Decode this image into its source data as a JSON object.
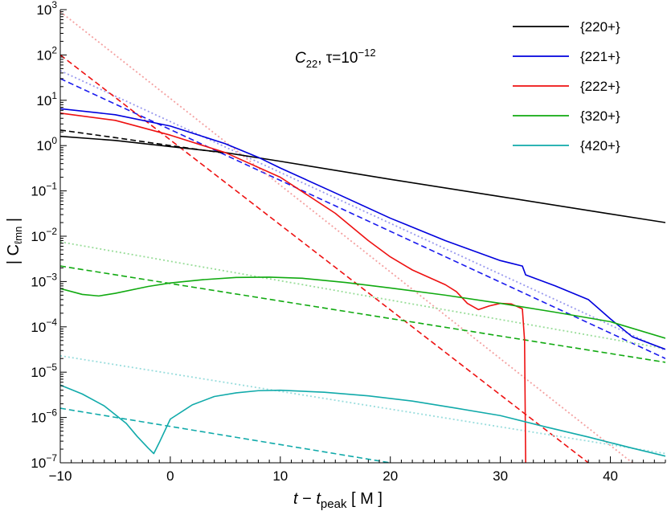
{
  "chart_data": {
    "type": "line",
    "title": "",
    "annotation": {
      "main": "C",
      "sub": "22",
      "tau": ", τ=10",
      "tau_exp": "−12"
    },
    "xlabel": {
      "t": "t",
      "minus": " − ",
      "tpeak": "t",
      "tpeak_sub": "peak",
      "unit": " [ M ]"
    },
    "ylabel": {
      "text": "| C",
      "sub": "ℓmn",
      "close": " |"
    },
    "xlim": [
      -10,
      45
    ],
    "ylim": [
      1e-07,
      1000
    ],
    "yscale": "log",
    "grid": false,
    "legend_position": "top-right",
    "x_ticks": [
      {
        "value": -10,
        "label": "−10"
      },
      {
        "value": 0,
        "label": "0"
      },
      {
        "value": 10,
        "label": "10"
      },
      {
        "value": 20,
        "label": "20"
      },
      {
        "value": 30,
        "label": "30"
      },
      {
        "value": 40,
        "label": "40"
      }
    ],
    "y_ticks": [
      {
        "exp": 3,
        "base": "10",
        "sup": "3"
      },
      {
        "exp": 2,
        "base": "10",
        "sup": "2"
      },
      {
        "exp": 1,
        "base": "10",
        "sup": "1"
      },
      {
        "exp": 0,
        "base": "10",
        "sup": "0"
      },
      {
        "exp": -1,
        "base": "10",
        "sup": "−1"
      },
      {
        "exp": -2,
        "base": "10",
        "sup": "−2"
      },
      {
        "exp": -3,
        "base": "10",
        "sup": "−3"
      },
      {
        "exp": -4,
        "base": "10",
        "sup": "−4"
      },
      {
        "exp": -5,
        "base": "10",
        "sup": "−5"
      },
      {
        "exp": -6,
        "base": "10",
        "sup": "−6"
      },
      {
        "exp": -7,
        "base": "10",
        "sup": "−7"
      }
    ],
    "series": [
      {
        "name": "{220+}",
        "color": "#000000",
        "style": "solid",
        "x": [
          -10,
          -5,
          0,
          5,
          10,
          20,
          30,
          40,
          45
        ],
        "y": [
          1.6,
          1.3,
          0.95,
          0.7,
          0.45,
          0.18,
          0.075,
          0.031,
          0.02
        ]
      },
      {
        "name": "{221+}",
        "color": "#0000dd",
        "style": "solid",
        "x": [
          -10,
          -5,
          0,
          5,
          8,
          10,
          15,
          20,
          25,
          30,
          32,
          32.3,
          35,
          38,
          40,
          42,
          45
        ],
        "y": [
          6.5,
          4.8,
          2.7,
          1.1,
          0.55,
          0.32,
          0.09,
          0.025,
          0.008,
          0.0029,
          0.0022,
          0.0014,
          0.0008,
          0.0004,
          0.00015,
          6e-05,
          3.2e-05
        ]
      },
      {
        "name": "{222+}",
        "color": "#ee1111",
        "style": "solid",
        "x": [
          -10,
          -5,
          0,
          5,
          10,
          15,
          18,
          20,
          22,
          25,
          26,
          27,
          28,
          29,
          30,
          31,
          32,
          32.2,
          32.3
        ],
        "y": [
          5.2,
          3.6,
          1.7,
          0.7,
          0.2,
          0.032,
          0.008,
          0.0035,
          0.0018,
          0.00085,
          0.0006,
          0.00033,
          0.00024,
          0.00029,
          0.00033,
          0.00032,
          0.00025,
          5e-05,
          1e-07
        ]
      },
      {
        "name": "{320+}",
        "color": "#11aa11",
        "style": "solid",
        "x": [
          -10,
          -8,
          -6.5,
          -5,
          -2,
          0,
          3,
          6,
          9,
          12,
          16,
          20,
          25,
          30,
          35,
          40,
          45
        ],
        "y": [
          0.0007,
          0.00052,
          0.00048,
          0.00055,
          0.00078,
          0.00093,
          0.0011,
          0.00123,
          0.00125,
          0.00118,
          0.00095,
          0.00072,
          0.0005,
          0.00033,
          0.00021,
          0.00013,
          5.6e-05
        ]
      },
      {
        "name": "{420+}",
        "color": "#11aaaa",
        "style": "solid",
        "x": [
          -10,
          -8,
          -6,
          -4,
          -3,
          -2,
          -1.5,
          -1,
          0,
          2,
          4,
          6,
          8,
          10,
          14,
          18,
          22,
          26,
          30,
          34,
          38,
          42,
          45
        ],
        "y": [
          5.2e-06,
          3.3e-06,
          1.8e-06,
          7.4e-07,
          3.8e-07,
          2.1e-07,
          1.6e-07,
          2.8e-07,
          9.2e-07,
          1.9e-06,
          2.9e-06,
          3.5e-06,
          3.9e-06,
          4e-06,
          3.6e-06,
          3e-06,
          2.3e-06,
          1.6e-06,
          1.1e-06,
          6.3e-07,
          3.7e-07,
          2.1e-07,
          1.4e-07
        ]
      }
    ],
    "fits": [
      {
        "color": "#000000",
        "style": "dashed",
        "x": [
          -10,
          -5,
          0,
          5
        ],
        "y": [
          2.2,
          1.5,
          1.0,
          0.68
        ]
      },
      {
        "color": "#1a1aee",
        "style": "dashed",
        "x": [
          -10,
          45
        ],
        "y": [
          30,
          2e-05
        ]
      },
      {
        "color": "#9999ee",
        "style": "dotted",
        "x": [
          -10,
          45
        ],
        "y": [
          45,
          3e-05
        ]
      },
      {
        "color": "#ee1111",
        "style": "dashed",
        "x": [
          -10,
          38
        ],
        "y": [
          100,
          1e-07
        ]
      },
      {
        "color": "#f4a0a0",
        "style": "dotted",
        "x": [
          -10,
          42
        ],
        "y": [
          900,
          1e-07
        ]
      },
      {
        "color": "#11aa11",
        "style": "dashed",
        "x": [
          -10,
          45
        ],
        "y": [
          0.0022,
          1.65e-05
        ]
      },
      {
        "color": "#99dd99",
        "style": "dotted",
        "x": [
          -10,
          45
        ],
        "y": [
          0.0075,
          3.3e-05
        ]
      },
      {
        "color": "#11aaaa",
        "style": "dashed",
        "x": [
          -10,
          20
        ],
        "y": [
          1.6e-06,
          1e-07
        ]
      },
      {
        "color": "#99dddd",
        "style": "dotted",
        "x": [
          -10,
          45
        ],
        "y": [
          2.3e-05,
          1.6e-07
        ]
      }
    ]
  }
}
